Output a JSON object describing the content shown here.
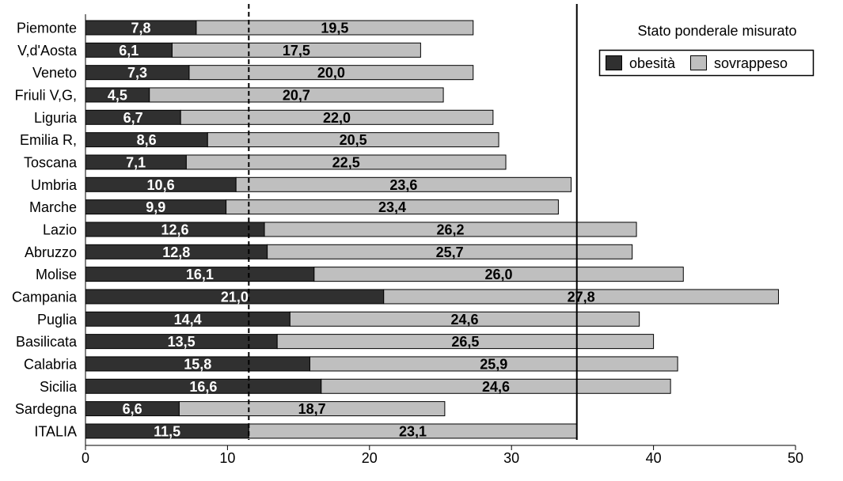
{
  "chart_data": {
    "type": "bar",
    "orientation": "horizontal",
    "stacked": true,
    "categories": [
      "Piemonte",
      "V,d'Aosta",
      "Veneto",
      "Friuli V,G,",
      "Liguria",
      "Emilia R,",
      "Toscana",
      "Umbria",
      "Marche",
      "Lazio",
      "Abruzzo",
      "Molise",
      "Campania",
      "Puglia",
      "Basilicata",
      "Calabria",
      "Sicilia",
      "Sardegna",
      "ITALIA"
    ],
    "series": [
      {
        "name": "obesità",
        "color": "#303030",
        "label_color": "#ffffff",
        "values": [
          7.8,
          6.1,
          7.3,
          4.5,
          6.7,
          8.6,
          7.1,
          10.6,
          9.9,
          12.6,
          12.8,
          16.1,
          21.0,
          14.4,
          13.5,
          15.8,
          16.6,
          6.6,
          11.5
        ],
        "data_labels": [
          "7,8",
          "6,1",
          "7,3",
          "4,5",
          "6,7",
          "8,6",
          "7,1",
          "10,6",
          "9,9",
          "12,6",
          "12,8",
          "16,1",
          "21,0",
          "14,4",
          "13,5",
          "15,8",
          "16,6",
          "6,6",
          "11,5"
        ]
      },
      {
        "name": "sovrappeso",
        "color": "#bfbfbf",
        "label_color": "#000000",
        "values": [
          19.5,
          17.5,
          20.0,
          20.7,
          22.0,
          20.5,
          22.5,
          23.6,
          23.4,
          26.2,
          25.7,
          26.0,
          27.8,
          24.6,
          26.5,
          25.9,
          24.6,
          18.7,
          23.1
        ],
        "data_labels": [
          "19,5",
          "17,5",
          "20,0",
          "20,7",
          "22,0",
          "20,5",
          "22,5",
          "23,6",
          "23,4",
          "26,2",
          "25,7",
          "26,0",
          "27,8",
          "24,6",
          "26,5",
          "25,9",
          "24,6",
          "18,7",
          "23,1"
        ]
      }
    ],
    "legend": {
      "title": "Stato ponderale misurato",
      "position": "top-right"
    },
    "xlim": [
      0,
      50
    ],
    "x_ticks": [
      0,
      10,
      20,
      30,
      40,
      50
    ],
    "reference_lines": [
      {
        "value": 11.5,
        "style": "dashed"
      },
      {
        "value": 34.6,
        "style": "solid"
      }
    ],
    "grid": false
  }
}
